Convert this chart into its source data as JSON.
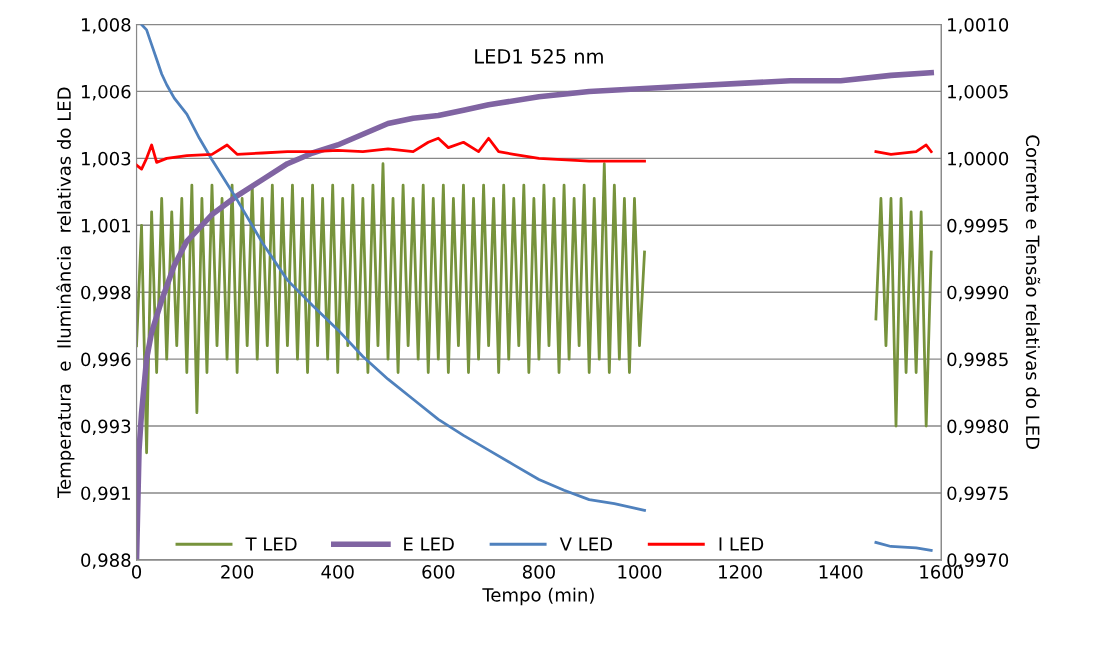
{
  "chart_data": {
    "type": "line",
    "xlabel": "Tempo (min)",
    "ylabel": "Temperatura  e  Iluminância  relativas do LED",
    "y2label": "Corrente e Tensão relativas do LED",
    "annotations": [
      "LED1 525 nm"
    ],
    "xlim": [
      0,
      1600
    ],
    "xticks": [
      0,
      200,
      400,
      600,
      800,
      1000,
      1200,
      1400,
      1600
    ],
    "ylim": [
      0.988,
      1.008
    ],
    "yticks": [
      {
        "value": 0.988,
        "label": "0,988"
      },
      {
        "value": 0.9905,
        "label": "0,991"
      },
      {
        "value": 0.993,
        "label": "0,993"
      },
      {
        "value": 0.9955,
        "label": "0,996"
      },
      {
        "value": 0.998,
        "label": "0,998"
      },
      {
        "value": 1.0005,
        "label": "1,001"
      },
      {
        "value": 1.003,
        "label": "1,003"
      },
      {
        "value": 1.0055,
        "label": "1,006"
      },
      {
        "value": 1.008,
        "label": "1,008"
      }
    ],
    "y2lim": [
      0.997,
      1.001
    ],
    "y2ticks": [
      {
        "value": 0.997,
        "label": "0,9970"
      },
      {
        "value": 0.9975,
        "label": "0,9975"
      },
      {
        "value": 0.998,
        "label": "0,9980"
      },
      {
        "value": 0.9985,
        "label": "0,9985"
      },
      {
        "value": 0.999,
        "label": "0,9990"
      },
      {
        "value": 0.9995,
        "label": "0,9995"
      },
      {
        "value": 1.0,
        "label": "1,0000"
      },
      {
        "value": 1.0005,
        "label": "1,0005"
      },
      {
        "value": 1.001,
        "label": "1,0010"
      }
    ],
    "grid": "y",
    "legend": "bottom",
    "marker": "none",
    "line_style": "solid",
    "series": [
      {
        "name": "T LED",
        "color": "#77933c",
        "x": [
          0,
          10,
          20,
          30,
          40,
          50,
          60,
          70,
          80,
          90,
          100,
          110,
          120,
          130,
          140,
          150,
          160,
          170,
          180,
          190,
          200,
          210,
          220,
          230,
          240,
          250,
          260,
          270,
          280,
          290,
          300,
          310,
          320,
          330,
          340,
          350,
          360,
          370,
          380,
          390,
          400,
          410,
          420,
          430,
          440,
          450,
          460,
          470,
          480,
          490,
          500,
          510,
          520,
          530,
          540,
          550,
          560,
          570,
          580,
          590,
          600,
          610,
          620,
          630,
          640,
          650,
          660,
          670,
          680,
          690,
          700,
          710,
          720,
          730,
          740,
          750,
          760,
          770,
          780,
          790,
          800,
          810,
          820,
          830,
          840,
          850,
          860,
          870,
          880,
          890,
          900,
          910,
          920,
          930,
          940,
          950,
          960,
          970,
          980,
          990,
          1000,
          1010,
          1240,
          1470,
          1480,
          1490,
          1500,
          1510,
          1520,
          1530,
          1540,
          1550,
          1560,
          1570,
          1580
        ],
        "values": [
          0.996,
          1.0005,
          0.992,
          1.001,
          0.995,
          1.0015,
          0.9955,
          1.001,
          0.996,
          1.0015,
          0.995,
          1.002,
          0.9935,
          1.0015,
          0.995,
          1.002,
          0.996,
          1.0015,
          0.9955,
          1.002,
          0.995,
          1.0015,
          0.996,
          1.002,
          0.9955,
          1.0015,
          0.996,
          1.002,
          0.995,
          1.0015,
          0.996,
          1.002,
          0.9955,
          1.0015,
          0.995,
          1.002,
          0.996,
          1.0015,
          0.9955,
          1.002,
          0.995,
          1.0015,
          0.996,
          1.002,
          0.9955,
          1.0015,
          0.995,
          1.002,
          0.996,
          1.0028,
          0.9955,
          1.0015,
          0.995,
          1.002,
          0.996,
          1.0015,
          0.9955,
          1.002,
          0.995,
          1.0015,
          0.9955,
          1.002,
          0.995,
          1.0015,
          0.996,
          1.002,
          0.995,
          1.0015,
          0.9955,
          1.002,
          0.996,
          1.0015,
          0.995,
          1.002,
          0.9955,
          1.0015,
          0.996,
          1.002,
          0.995,
          1.0015,
          0.9955,
          1.002,
          0.996,
          1.0015,
          0.995,
          1.002,
          0.9955,
          1.0015,
          0.996,
          1.002,
          0.995,
          1.0015,
          0.9955,
          1.0028,
          0.995,
          1.002,
          0.9955,
          1.0015,
          0.995,
          1.0015,
          0.996,
          0.9995,
          null,
          0.997,
          1.0015,
          0.996,
          1.0015,
          0.993,
          1.0015,
          0.995,
          1.001,
          0.995,
          1.001,
          0.993,
          0.9995
        ]
      },
      {
        "name": "E LED",
        "color": "#8064a2",
        "x": [
          0,
          5,
          10,
          20,
          30,
          50,
          75,
          100,
          150,
          200,
          250,
          300,
          350,
          400,
          450,
          500,
          550,
          600,
          650,
          700,
          800,
          900,
          1000,
          1100,
          1200,
          1300,
          1400,
          1500,
          1580
        ],
        "values": [
          0.988,
          0.9921,
          0.9935,
          0.9955,
          0.9965,
          0.9977,
          0.999,
          0.9999,
          1.0009,
          1.0016,
          1.0022,
          1.0028,
          1.0032,
          1.0035,
          1.0039,
          1.0043,
          1.0045,
          1.0046,
          1.0048,
          1.005,
          1.0053,
          1.0055,
          1.0056,
          1.0057,
          1.0058,
          1.0059,
          1.0059,
          1.0061,
          1.0062
        ]
      },
      {
        "name": "V LED",
        "color": "#4f81bd",
        "axis": "y2",
        "x": [
          10,
          20,
          30,
          40,
          50,
          60,
          75,
          100,
          125,
          150,
          200,
          250,
          300,
          350,
          400,
          450,
          500,
          550,
          600,
          650,
          700,
          750,
          800,
          850,
          900,
          950,
          1010,
          1240,
          1470,
          1500,
          1550,
          1580
        ],
        "values": [
          1.001,
          1.00096,
          1.00085,
          1.00074,
          1.00063,
          1.00055,
          1.00045,
          1.00033,
          1.00015,
          0.99999,
          0.99969,
          0.99937,
          0.99909,
          0.9989,
          0.99872,
          0.99852,
          0.99835,
          0.9982,
          0.99805,
          0.99793,
          0.99782,
          0.99771,
          0.9976,
          0.99752,
          0.99745,
          0.99742,
          0.99737,
          null,
          0.99713,
          0.9971,
          0.99709,
          0.99707
        ]
      },
      {
        "name": "I LED",
        "color": "#ff0000",
        "axis": "y2",
        "x": [
          0,
          10,
          20,
          30,
          40,
          60,
          100,
          150,
          180,
          200,
          250,
          300,
          350,
          400,
          450,
          500,
          550,
          580,
          600,
          620,
          650,
          680,
          700,
          720,
          750,
          800,
          900,
          1010,
          1240,
          1470,
          1500,
          1550,
          1570,
          1580
        ],
        "values": [
          0.99995,
          0.99992,
          1.0,
          1.0001,
          0.99997,
          1.0,
          1.00002,
          1.00003,
          1.0001,
          1.00003,
          1.00004,
          1.00005,
          1.00005,
          1.00006,
          1.00005,
          1.00007,
          1.00005,
          1.00012,
          1.00015,
          1.00008,
          1.00012,
          1.00005,
          1.00015,
          1.00005,
          1.00003,
          1.0,
          0.99998,
          0.99998,
          null,
          1.00005,
          1.00003,
          1.00005,
          1.0001,
          1.00005
        ]
      }
    ]
  }
}
